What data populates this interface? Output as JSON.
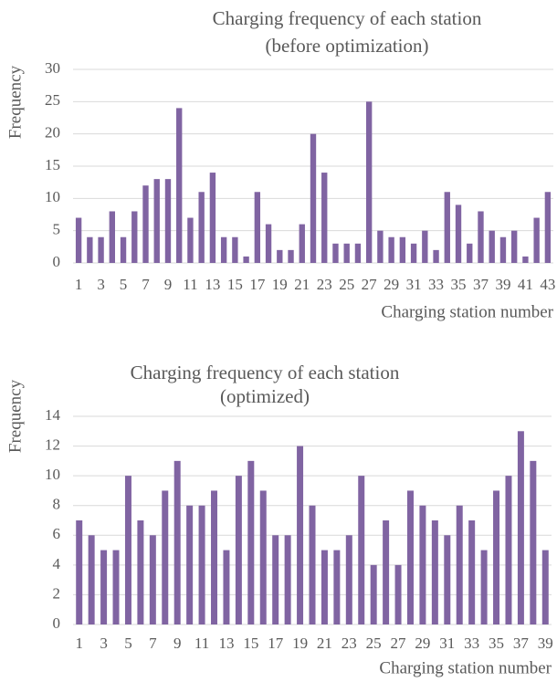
{
  "chart_data": [
    {
      "type": "bar",
      "title": [
        "Charging frequency of each station",
        "(before optimization)"
      ],
      "x_label": "Charging station number",
      "y_label": "Frequency",
      "categories": [
        1,
        null,
        3,
        null,
        5,
        null,
        7,
        null,
        9,
        null,
        11,
        null,
        13,
        null,
        15,
        null,
        17,
        null,
        19,
        null,
        21,
        null,
        23,
        null,
        25,
        null,
        27,
        null,
        29,
        null,
        31,
        null,
        33,
        null,
        35,
        null,
        37,
        null,
        39,
        null,
        41,
        null,
        43
      ],
      "values": [
        7,
        4,
        4,
        8,
        4,
        8,
        12,
        13,
        13,
        24,
        7,
        11,
        14,
        4,
        4,
        1,
        11,
        6,
        2,
        2,
        6,
        20,
        14,
        3,
        3,
        3,
        25,
        5,
        4,
        4,
        3,
        5,
        2,
        11,
        9,
        3,
        8,
        5,
        4,
        5,
        1,
        7,
        11
      ],
      "color": "#8064a2",
      "ylim": [
        0,
        30
      ],
      "yticks": [
        0,
        5,
        10,
        15,
        20,
        25,
        30
      ],
      "grid": true
    },
    {
      "type": "bar",
      "title": [
        "Charging frequency of each station",
        "(optimized)"
      ],
      "x_label": "Charging station number",
      "y_label": "Frequency",
      "categories": [
        1,
        null,
        3,
        null,
        5,
        null,
        7,
        null,
        9,
        null,
        11,
        null,
        13,
        null,
        15,
        null,
        17,
        null,
        19,
        null,
        21,
        null,
        23,
        null,
        25,
        null,
        27,
        null,
        29,
        null,
        31,
        null,
        33,
        null,
        35,
        null,
        37,
        null,
        39
      ],
      "values": [
        7,
        6,
        5,
        5,
        10,
        7,
        6,
        9,
        11,
        8,
        8,
        9,
        5,
        10,
        11,
        9,
        6,
        6,
        12,
        8,
        5,
        5,
        6,
        10,
        4,
        7,
        4,
        9,
        8,
        7,
        6,
        8,
        7,
        5,
        9,
        10,
        13,
        11,
        5
      ],
      "color": "#8064a2",
      "ylim": [
        0,
        14
      ],
      "yticks": [
        0,
        2,
        4,
        6,
        8,
        10,
        12,
        14
      ],
      "grid": true
    }
  ]
}
